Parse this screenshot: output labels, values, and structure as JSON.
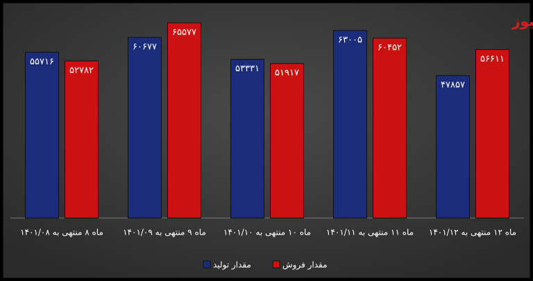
{
  "chart_data": {
    "type": "bar",
    "logo": "تجارت نیوز",
    "categories": [
      "ماه ۸ منتهی به ۱۴۰۱/۰۸",
      "ماه ۹ منتهی به ۱۴۰۱/۰۹",
      "ماه ۱۰ منتهی به ۱۴۰۱/۱۰",
      "ماه ۱۱ منتهی به ۱۴۰۱/۱۱",
      "ماه ۱۲ منتهی به ۱۴۰۱/۱۲"
    ],
    "series": [
      {
        "name": "مقدار تولید",
        "color": "#1b2d7a",
        "values": [
          55716,
          60677,
          53331,
          63005,
          47857
        ],
        "value_labels": [
          "۵۵۷۱۶",
          "۶۰۶۷۷",
          "۵۳۳۳۱",
          "۶۳۰۰۵",
          "۴۷۸۵۷"
        ]
      },
      {
        "name": "مقدار فروش",
        "color": "#cc1111",
        "values": [
          52782,
          65577,
          51917,
          60452,
          56611
        ],
        "value_labels": [
          "۵۲۷۸۲",
          "۶۵۵۷۷",
          "۵۱۹۱۷",
          "۶۰۴۵۲",
          "۵۶۶۱۱"
        ]
      }
    ]
  }
}
